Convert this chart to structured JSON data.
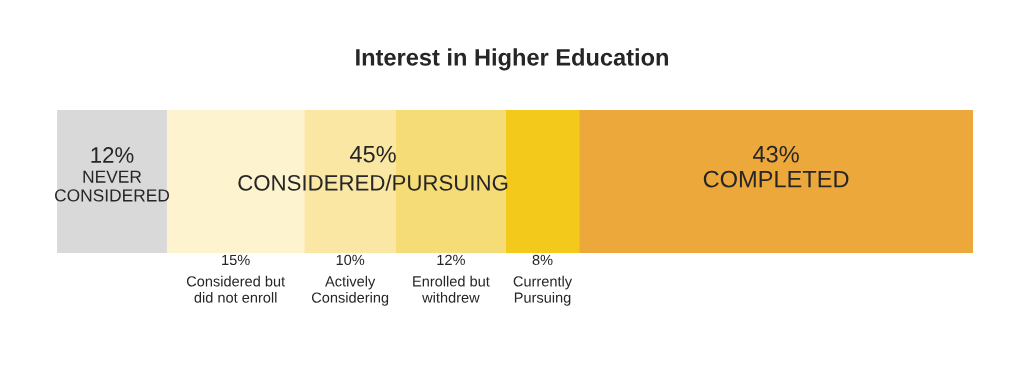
{
  "chart_data": {
    "type": "bar",
    "orientation": "horizontal",
    "stacked": true,
    "title": "Interest in Higher Education",
    "categories": [
      null
    ],
    "series": [
      {
        "name": "NEVER\nCONSIDERED",
        "color": "#d9d9d9",
        "values": [
          12
        ],
        "value_labels": [
          "12%"
        ]
      },
      {
        "name": "Considered but\ndid not enroll",
        "color": "#fdf4cf",
        "values": [
          15
        ],
        "value_labels": [
          "15%"
        ]
      },
      {
        "name": "Actively\nConsidering",
        "color": "#fbe7a4",
        "values": [
          10
        ],
        "value_labels": [
          "10%"
        ]
      },
      {
        "name": "Enrolled but\nwithdrew",
        "color": "#f6dc76",
        "values": [
          12
        ],
        "value_labels": [
          "12%"
        ]
      },
      {
        "name": "Currently\nPursuing",
        "color": "#f3c91b",
        "values": [
          8
        ],
        "value_labels": [
          "8%"
        ]
      },
      {
        "name": "COMPLETED",
        "color": "#eda83b",
        "values": [
          43
        ],
        "value_labels": [
          "43%"
        ]
      }
    ],
    "annotations": [
      "45%",
      "CONSIDERED/PURSUING"
    ],
    "legend": false
  }
}
